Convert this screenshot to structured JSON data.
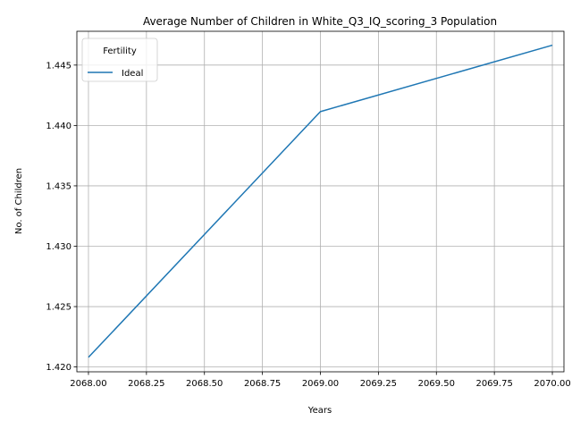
{
  "chart_data": {
    "type": "line",
    "title": "Average Number of Children in White_Q3_IQ_scoring_3 Population",
    "xlabel": "Years",
    "ylabel": "No. of Children",
    "xlim": [
      2067.95,
      2070.05
    ],
    "ylim": [
      1.4196,
      1.4478
    ],
    "xticks": [
      2068.0,
      2068.25,
      2068.5,
      2068.75,
      2069.0,
      2069.25,
      2069.5,
      2069.75,
      2070.0
    ],
    "xtick_labels": [
      "2068.00",
      "2068.25",
      "2068.50",
      "2068.75",
      "2069.00",
      "2069.25",
      "2069.50",
      "2069.75",
      "2070.00"
    ],
    "yticks": [
      1.42,
      1.425,
      1.43,
      1.435,
      1.44,
      1.445
    ],
    "ytick_labels": [
      "1.420",
      "1.425",
      "1.430",
      "1.435",
      "1.440",
      "1.445"
    ],
    "grid": true,
    "legend": {
      "title": "Fertility",
      "placement": "upper-left"
    },
    "series": [
      {
        "name": "Ideal",
        "color": "#1f77b4",
        "x": [
          2068,
          2069,
          2070
        ],
        "y": [
          1.4208,
          1.44115,
          1.44665
        ]
      }
    ]
  }
}
